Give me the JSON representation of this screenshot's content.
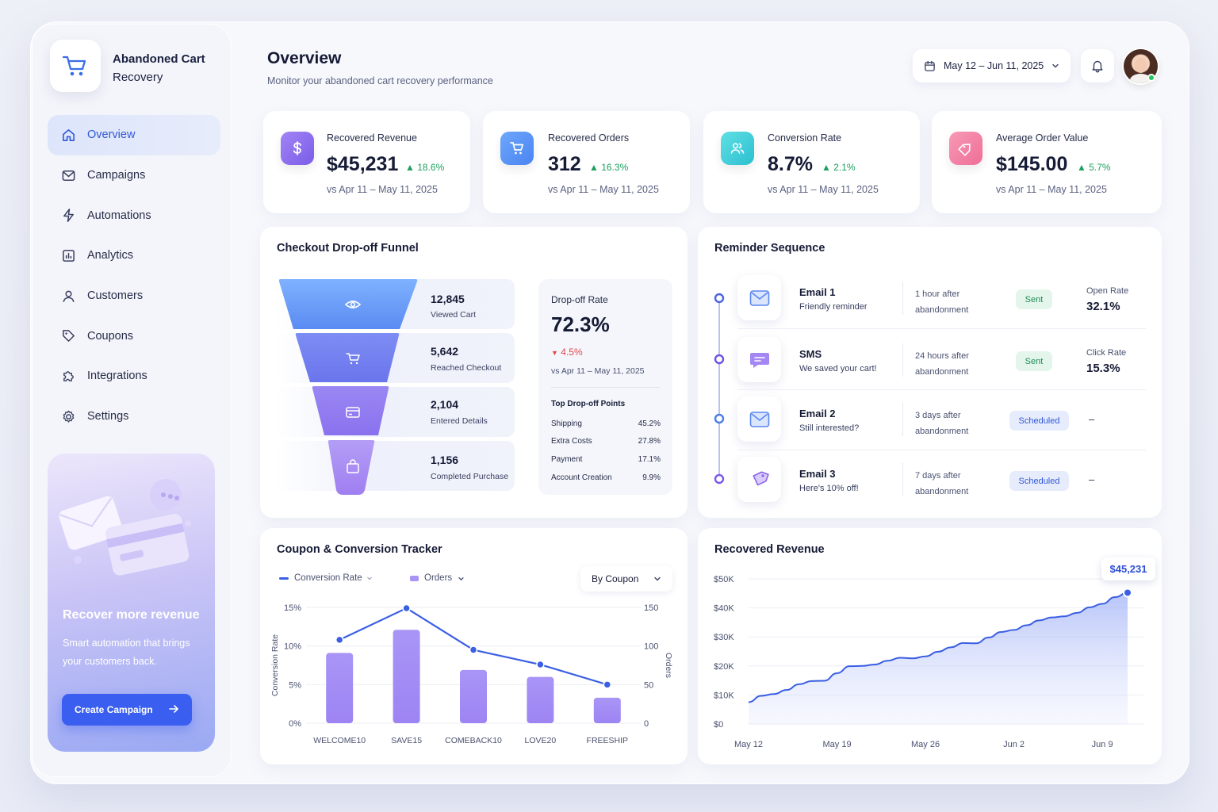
{
  "brand": {
    "name_line1": "Abandoned Cart",
    "name_line2": "Recovery"
  },
  "nav": [
    {
      "label": "Overview",
      "icon": "home-icon"
    },
    {
      "label": "Campaigns",
      "icon": "mail-icon"
    },
    {
      "label": "Automations",
      "icon": "bolt-icon"
    },
    {
      "label": "Analytics",
      "icon": "chart-icon"
    },
    {
      "label": "Customers",
      "icon": "user-icon"
    },
    {
      "label": "Coupons",
      "icon": "tag-icon"
    },
    {
      "label": "Integrations",
      "icon": "puzzle-icon"
    },
    {
      "label": "Settings",
      "icon": "gear-icon"
    }
  ],
  "promo": {
    "title": "Recover more revenue",
    "subtitle": "Smart automation that brings your customers back.",
    "button": "Create Campaign"
  },
  "header": {
    "title": "Overview",
    "subtitle": "Monitor your abandoned cart recovery performance",
    "date_range": "May 12 – Jun 11, 2025"
  },
  "kpis": [
    {
      "label": "Recovered Revenue",
      "value": "$45,231",
      "delta": "18.6%",
      "vs": "vs Apr 11 – May 11, 2025",
      "icon": "dollar-icon",
      "color": "#8b6cf0"
    },
    {
      "label": "Recovered Orders",
      "value": "312",
      "delta": "16.3%",
      "vs": "vs Apr 11 – May 11, 2025",
      "icon": "cart-icon",
      "color": "#4f8af5"
    },
    {
      "label": "Conversion Rate",
      "value": "8.7%",
      "delta": "2.1%",
      "vs": "vs Apr 11 – May 11, 2025",
      "icon": "users-icon",
      "color": "#2cc9d6"
    },
    {
      "label": "Average Order Value",
      "value": "$145.00",
      "delta": "5.7%",
      "vs": "vs Apr 11 – May 11, 2025",
      "icon": "tag-icon",
      "color": "#f07aa0"
    }
  ],
  "funnel": {
    "title": "Checkout Drop-off Funnel",
    "stages": [
      {
        "value": "12,845",
        "label": "Viewed Cart",
        "icon": "eye-icon"
      },
      {
        "value": "5,642",
        "label": "Reached Checkout",
        "icon": "cart-icon"
      },
      {
        "value": "2,104",
        "label": "Entered Details",
        "icon": "card-icon"
      },
      {
        "value": "1,156",
        "label": "Completed Purchase",
        "icon": "bag-icon"
      }
    ],
    "drop_off": {
      "label": "Drop-off Rate",
      "value": "72.3%",
      "delta": "4.5%",
      "vs": "vs Apr 11 – May 11, 2025",
      "points_title": "Top Drop-off Points",
      "points": [
        {
          "name": "Shipping",
          "value": "45.2%"
        },
        {
          "name": "Extra Costs",
          "value": "27.8%"
        },
        {
          "name": "Payment",
          "value": "17.1%"
        },
        {
          "name": "Account Creation",
          "value": "9.9%"
        }
      ]
    }
  },
  "reminder": {
    "title": "Reminder Sequence",
    "steps": [
      {
        "name": "Email 1",
        "desc": "Friendly reminder",
        "time1": "1 hour after",
        "time2": "abandonment",
        "status": "Sent",
        "metric_label": "Open Rate",
        "metric_value": "32.1%",
        "icon": "mail-icon"
      },
      {
        "name": "SMS",
        "desc": "We saved your cart!",
        "time1": "24 hours after",
        "time2": "abandonment",
        "status": "Sent",
        "metric_label": "Click Rate",
        "metric_value": "15.3%",
        "icon": "chat-icon"
      },
      {
        "name": "Email 2",
        "desc": "Still interested?",
        "time1": "3 days after",
        "time2": "abandonment",
        "status": "Scheduled",
        "metric_dash": "–",
        "icon": "mail-icon"
      },
      {
        "name": "Email 3",
        "desc": "Here's 10% off!",
        "time1": "7 days after",
        "time2": "abandonment",
        "status": "Scheduled",
        "metric_dash": "–",
        "icon": "tag-icon"
      }
    ]
  },
  "coupon_chart": {
    "title": "Coupon & Conversion Tracker",
    "legend_rate": "Conversion Rate",
    "legend_orders": "Orders",
    "dropdown": "By Coupon",
    "left_axis_label": "Conversion Rate",
    "right_axis_label": "Orders",
    "left_ticks": [
      "15%",
      "10%",
      "5%",
      "0%"
    ],
    "right_ticks": [
      "150",
      "100",
      "50",
      "0"
    ]
  },
  "revenue_chart": {
    "title": "Recovered Revenue",
    "callout": "$45,231",
    "y_ticks": [
      "$50K",
      "$40K",
      "$30K",
      "$20K",
      "$10K",
      "$0"
    ],
    "x_ticks": [
      "May 12",
      "May 19",
      "May 26",
      "Jun 2",
      "Jun 9"
    ]
  },
  "chart_data": [
    {
      "type": "bar",
      "title": "Coupon & Conversion Tracker",
      "categories": [
        "WELCOME10",
        "SAVE15",
        "COMEBACK10",
        "LOVE20",
        "FREESHIP"
      ],
      "series": [
        {
          "name": "Orders",
          "type": "bar",
          "axis": "right",
          "values": [
            91,
            121,
            69,
            60,
            33
          ]
        },
        {
          "name": "Conversion Rate",
          "type": "line",
          "axis": "left",
          "unit": "%",
          "values": [
            10.8,
            14.9,
            9.5,
            7.6,
            5.0
          ]
        }
      ],
      "ylim_left": [
        0,
        15
      ],
      "ylim_right": [
        0,
        150
      ],
      "ylabel_left": "Conversion Rate",
      "ylabel_right": "Orders",
      "grid": true,
      "colors": {
        "bars": "#9f8cf5",
        "line": "#3b5fe3"
      }
    },
    {
      "type": "area",
      "title": "Recovered Revenue",
      "x": [
        "May 12",
        "May 13",
        "May 14",
        "May 15",
        "May 16",
        "May 17",
        "May 18",
        "May 19",
        "May 20",
        "May 21",
        "May 22",
        "May 23",
        "May 24",
        "May 25",
        "May 26",
        "May 27",
        "May 28",
        "May 29",
        "May 30",
        "May 31",
        "Jun 1",
        "Jun 2",
        "Jun 3",
        "Jun 4",
        "Jun 5",
        "Jun 6",
        "Jun 7",
        "Jun 8",
        "Jun 9",
        "Jun 10",
        "Jun 11"
      ],
      "values": [
        7500,
        9700,
        10300,
        11700,
        13700,
        14800,
        14900,
        17500,
        19900,
        20000,
        20500,
        21800,
        22800,
        22600,
        23300,
        24900,
        26400,
        27900,
        27800,
        29800,
        31700,
        32400,
        34000,
        35700,
        36700,
        37100,
        38300,
        40200,
        41400,
        43700,
        45231
      ],
      "ylim": [
        0,
        50000
      ],
      "grid": true,
      "annotation": "$45,231",
      "color": "#3b5fe3"
    }
  ]
}
